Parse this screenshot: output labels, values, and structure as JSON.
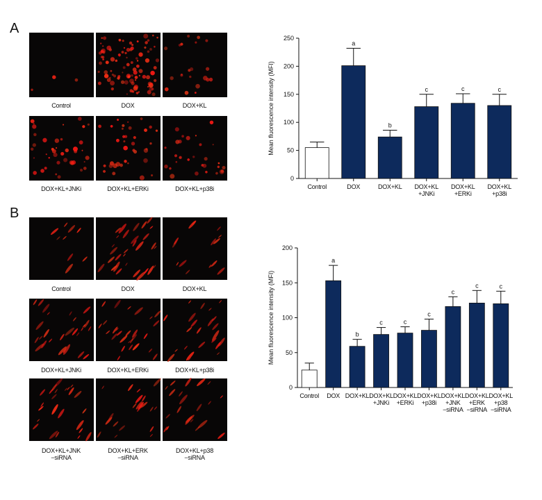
{
  "panel_labels": [
    "A",
    "B"
  ],
  "images": [
    [
      "Control",
      "DOX",
      "DOX+KL",
      "DOX+KL+JNKi",
      "DOX+KL+ERKi",
      "DOX+KL+p38i"
    ],
    [
      "Control",
      "DOX",
      "DOX+KL",
      "DOX+KL+JNKi",
      "DOX+KL+ERKi",
      "DOX+KL+p38i",
      "DOX+KL+JNK\n−siRNA",
      "DOX+KL+ERK\n−siRNA",
      "DOX+KL+p38\n−siRNA"
    ]
  ],
  "chart_data": [
    {
      "type": "bar",
      "ylabel": "Mean fluorescence intensity (MFI)",
      "categories": [
        "Control",
        "DOX",
        "DOX+KL",
        "DOX+KL\n+JNKi",
        "DOX+KL\n+ERKi",
        "DOX+KL\n+p38i"
      ],
      "values": [
        55,
        201,
        74,
        128,
        134,
        130
      ],
      "errors": [
        10,
        31,
        12,
        22,
        17,
        20
      ],
      "annotations": [
        null,
        "a",
        "b",
        "c",
        "c",
        "c"
      ],
      "colors": [
        "#ffffff",
        "#0d2a5c",
        "#0d2a5c",
        "#0d2a5c",
        "#0d2a5c",
        "#0d2a5c"
      ],
      "ylim": [
        0,
        250
      ],
      "yticks": [
        0,
        50,
        100,
        150,
        200,
        250
      ]
    },
    {
      "type": "bar",
      "ylabel": "Mean fluorescence intensity (MFI)",
      "categories": [
        "Control",
        "DOX",
        "DOX+KL",
        "DOX+KL\n+JNKi",
        "DOX+KL\n+ERKi",
        "DOX+KL\n+p38i",
        "DOX+KL\n+JNK\n−siRNA",
        "DOX+KL\n+ERK\n−siRNA",
        "DOX+KL\n+p38\n−siRNA"
      ],
      "values": [
        25,
        153,
        59,
        76,
        78,
        82,
        116,
        121,
        120
      ],
      "errors": [
        10,
        22,
        10,
        10,
        9,
        16,
        14,
        18,
        18
      ],
      "annotations": [
        null,
        "a",
        "b",
        "c",
        "c",
        "c",
        "c",
        "c",
        "c"
      ],
      "colors": [
        "#ffffff",
        "#0d2a5c",
        "#0d2a5c",
        "#0d2a5c",
        "#0d2a5c",
        "#0d2a5c",
        "#0d2a5c",
        "#0d2a5c",
        "#0d2a5c"
      ],
      "ylim": [
        0,
        200
      ],
      "yticks": [
        0,
        50,
        100,
        150,
        200
      ]
    }
  ]
}
